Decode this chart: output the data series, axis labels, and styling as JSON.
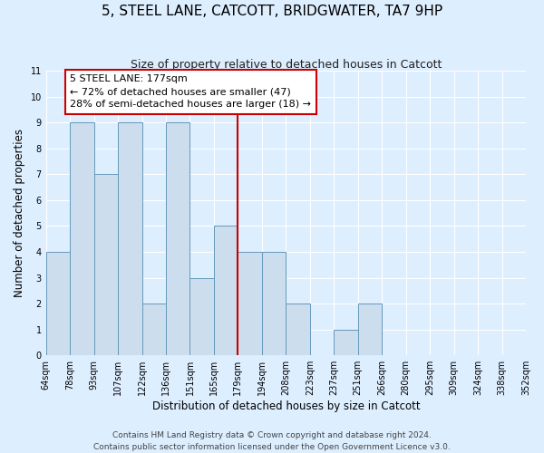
{
  "title": "5, STEEL LANE, CATCOTT, BRIDGWATER, TA7 9HP",
  "subtitle": "Size of property relative to detached houses in Catcott",
  "xlabel": "Distribution of detached houses by size in Catcott",
  "ylabel": "Number of detached properties",
  "bin_labels": [
    "64sqm",
    "78sqm",
    "93sqm",
    "107sqm",
    "122sqm",
    "136sqm",
    "151sqm",
    "165sqm",
    "179sqm",
    "194sqm",
    "208sqm",
    "223sqm",
    "237sqm",
    "251sqm",
    "266sqm",
    "280sqm",
    "295sqm",
    "309sqm",
    "324sqm",
    "338sqm",
    "352sqm"
  ],
  "bar_values": [
    4,
    9,
    7,
    9,
    2,
    9,
    3,
    5,
    4,
    4,
    2,
    0,
    1,
    2,
    0,
    0,
    0,
    0,
    0,
    0
  ],
  "bar_color": "#ccdded",
  "bar_edge_color": "#6699bb",
  "vline_color": "#cc0000",
  "annotation_text": "5 STEEL LANE: 177sqm\n← 72% of detached houses are smaller (47)\n28% of semi-detached houses are larger (18) →",
  "annotation_box_facecolor": "#ffffff",
  "annotation_box_edgecolor": "#cc0000",
  "ylim": [
    0,
    11
  ],
  "yticks": [
    0,
    1,
    2,
    3,
    4,
    5,
    6,
    7,
    8,
    9,
    10,
    11
  ],
  "background_color": "#ddeeff",
  "plot_background_color": "#ddeeff",
  "footer_line1": "Contains HM Land Registry data © Crown copyright and database right 2024.",
  "footer_line2": "Contains public sector information licensed under the Open Government Licence v3.0.",
  "title_fontsize": 11,
  "subtitle_fontsize": 9,
  "axis_label_fontsize": 8.5,
  "tick_fontsize": 7,
  "annotation_fontsize": 8,
  "footer_fontsize": 6.5
}
